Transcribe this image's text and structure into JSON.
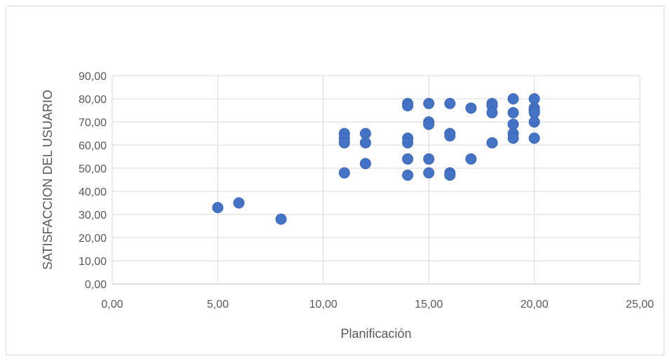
{
  "chart_data": {
    "type": "scatter",
    "title": "",
    "xlabel": "Planificación",
    "ylabel": "SATISFACCION DEL USUARIO",
    "xlim": [
      0,
      25
    ],
    "ylim": [
      0,
      90
    ],
    "x_ticks": [
      "0,00",
      "5,00",
      "10,00",
      "15,00",
      "20,00",
      "25,00"
    ],
    "y_ticks": [
      "0,00",
      "10,00",
      "20,00",
      "30,00",
      "40,00",
      "50,00",
      "60,00",
      "70,00",
      "80,00",
      "90,00"
    ],
    "grid": true,
    "legend": "none",
    "marker_color": "#4472c4",
    "points": [
      [
        5,
        33
      ],
      [
        6,
        35
      ],
      [
        8,
        28
      ],
      [
        11,
        65
      ],
      [
        11,
        63
      ],
      [
        11,
        61
      ],
      [
        11,
        48
      ],
      [
        12,
        65
      ],
      [
        12,
        61
      ],
      [
        12,
        52
      ],
      [
        14,
        78
      ],
      [
        14,
        77
      ],
      [
        14,
        63
      ],
      [
        14,
        61
      ],
      [
        14,
        54
      ],
      [
        14,
        47
      ],
      [
        15,
        78
      ],
      [
        15,
        70
      ],
      [
        15,
        69
      ],
      [
        15,
        54
      ],
      [
        15,
        48
      ],
      [
        16,
        78
      ],
      [
        16,
        65
      ],
      [
        16,
        64
      ],
      [
        16,
        48
      ],
      [
        16,
        47
      ],
      [
        17,
        76
      ],
      [
        17,
        54
      ],
      [
        18,
        78
      ],
      [
        18,
        77
      ],
      [
        18,
        74
      ],
      [
        18,
        61
      ],
      [
        19,
        80
      ],
      [
        19,
        74
      ],
      [
        19,
        69
      ],
      [
        19,
        65
      ],
      [
        19,
        63
      ],
      [
        20,
        80
      ],
      [
        20,
        76
      ],
      [
        20,
        75
      ],
      [
        20,
        74
      ],
      [
        20,
        70
      ],
      [
        20,
        63
      ]
    ]
  }
}
